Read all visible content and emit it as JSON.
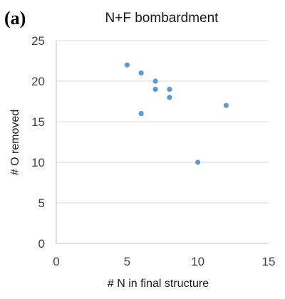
{
  "panel_label": "(a)",
  "chart_data": {
    "type": "scatter",
    "title": "N+F bombardment",
    "xlabel": "# N in final structure",
    "ylabel": "# O removed",
    "xlim": [
      0,
      15
    ],
    "ylim": [
      0,
      25
    ],
    "xticks": [
      0,
      5,
      10,
      15
    ],
    "yticks": [
      0,
      5,
      10,
      15,
      20,
      25
    ],
    "grid": "horizontal",
    "legend": "none",
    "marker_color": "#5b9bd5",
    "points": [
      {
        "x": 5,
        "y": 22
      },
      {
        "x": 6,
        "y": 21
      },
      {
        "x": 6,
        "y": 16
      },
      {
        "x": 7,
        "y": 20
      },
      {
        "x": 7,
        "y": 19
      },
      {
        "x": 8,
        "y": 19
      },
      {
        "x": 8,
        "y": 18
      },
      {
        "x": 10,
        "y": 10
      },
      {
        "x": 12,
        "y": 17
      }
    ]
  }
}
